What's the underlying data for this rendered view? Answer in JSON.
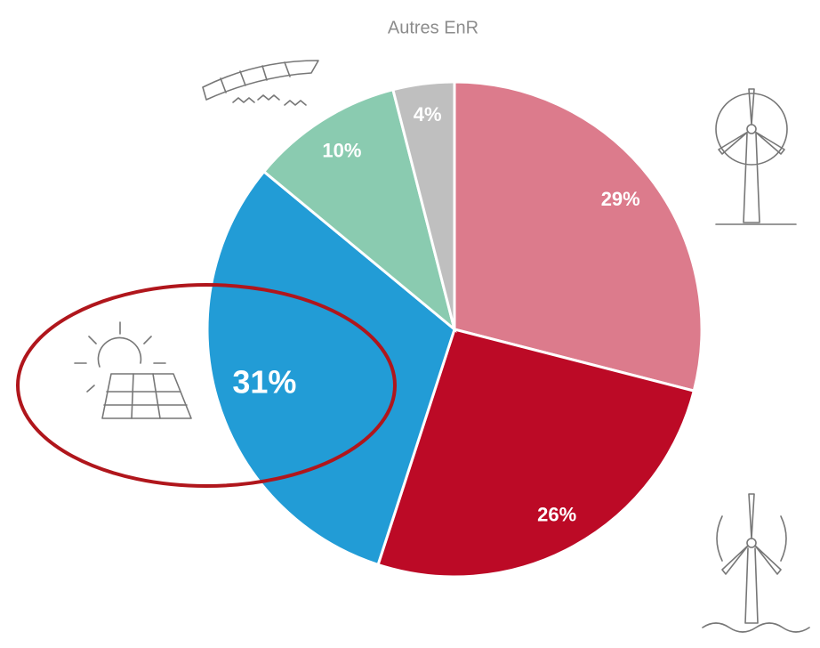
{
  "chart_data": {
    "type": "pie",
    "annotation": "Autres EnR",
    "values": [
      29,
      26,
      31,
      10,
      4
    ],
    "value_labels": [
      "29%",
      "26%",
      "31%",
      "10%",
      "4%"
    ],
    "colors": [
      "#dc7b8c",
      "#bc0a26",
      "#229cd6",
      "#8acbb0",
      "#bfbfbf"
    ]
  }
}
